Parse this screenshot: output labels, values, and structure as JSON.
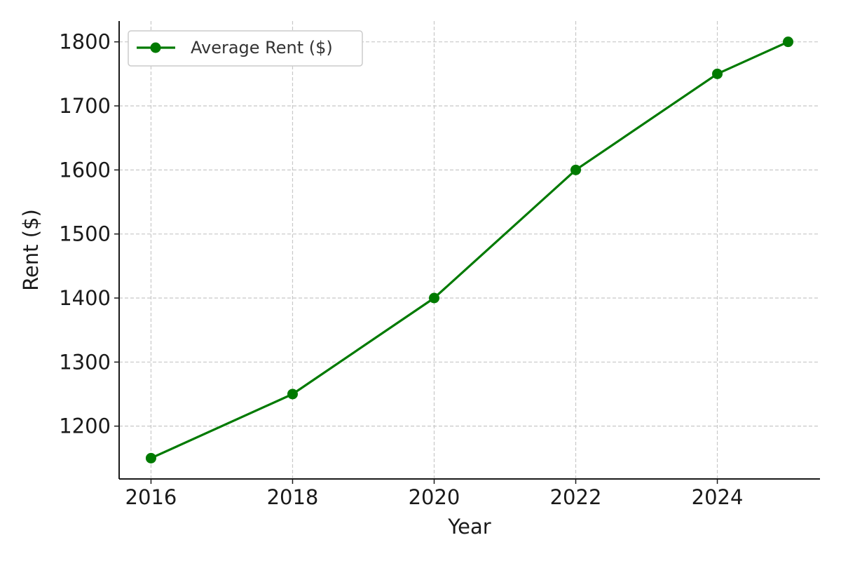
{
  "chart_data": {
    "type": "line",
    "title": "",
    "xlabel": "Year",
    "ylabel": "Rent ($)",
    "x": [
      2016,
      2018,
      2020,
      2022,
      2024,
      2025
    ],
    "series": [
      {
        "name": "Average Rent ($)",
        "values": [
          1150,
          1250,
          1400,
          1600,
          1750,
          1800
        ],
        "color": "#007a00",
        "marker": "circle"
      }
    ],
    "xticks": [
      "2016",
      "2018",
      "2020",
      "2022",
      "2024"
    ],
    "yticks": [
      "1200",
      "1300",
      "1400",
      "1500",
      "1600",
      "1700",
      "1800"
    ],
    "xlim": [
      2015.55,
      2025.45
    ],
    "ylim": [
      1117.5,
      1832.5
    ],
    "grid": true,
    "legend_position": "top-left"
  }
}
